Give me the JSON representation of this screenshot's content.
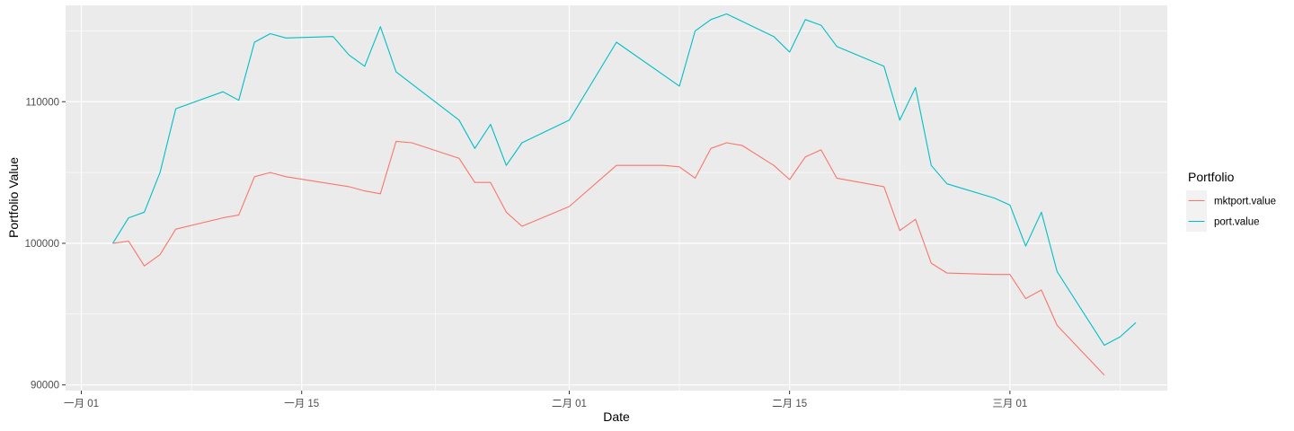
{
  "chart_data": {
    "type": "line",
    "xlabel": "Date",
    "ylabel": "Portfolio Value",
    "xlim": [
      "2021-12-31",
      "2022-03-11"
    ],
    "ylim": [
      89600,
      116800
    ],
    "x_ticks": [
      {
        "date": "2022-01-01",
        "label": "一月 01"
      },
      {
        "date": "2022-01-15",
        "label": "一月 15"
      },
      {
        "date": "2022-02-01",
        "label": "二月 01"
      },
      {
        "date": "2022-02-15",
        "label": "二月 15"
      },
      {
        "date": "2022-03-01",
        "label": "三月 01"
      }
    ],
    "y_ticks": [
      {
        "value": 90000,
        "label": "90000"
      },
      {
        "value": 100000,
        "label": "100000"
      },
      {
        "value": 110000,
        "label": "110000"
      }
    ],
    "grid": true,
    "legend": {
      "title": "Portfolio",
      "position": "right"
    },
    "series": [
      {
        "name": "mktport.value",
        "color": "#F8766D",
        "points": [
          [
            "2022-01-03",
            100000
          ],
          [
            "2022-01-04",
            100150
          ],
          [
            "2022-01-05",
            98400
          ],
          [
            "2022-01-06",
            99200
          ],
          [
            "2022-01-07",
            101000
          ],
          [
            "2022-01-10",
            101800
          ],
          [
            "2022-01-11",
            102000
          ],
          [
            "2022-01-12",
            104700
          ],
          [
            "2022-01-13",
            105000
          ],
          [
            "2022-01-14",
            104700
          ],
          [
            "2022-01-18",
            104000
          ],
          [
            "2022-01-19",
            103700
          ],
          [
            "2022-01-20",
            103500
          ],
          [
            "2022-01-21",
            107200
          ],
          [
            "2022-01-22",
            107100
          ],
          [
            "2022-01-25",
            106000
          ],
          [
            "2022-01-26",
            104300
          ],
          [
            "2022-01-27",
            104300
          ],
          [
            "2022-01-28",
            102200
          ],
          [
            "2022-01-29",
            101200
          ],
          [
            "2022-02-01",
            102600
          ],
          [
            "2022-02-04",
            105500
          ],
          [
            "2022-02-07",
            105500
          ],
          [
            "2022-02-08",
            105400
          ],
          [
            "2022-02-09",
            104600
          ],
          [
            "2022-02-10",
            106700
          ],
          [
            "2022-02-11",
            107100
          ],
          [
            "2022-02-12",
            106900
          ],
          [
            "2022-02-14",
            105500
          ],
          [
            "2022-02-15",
            104500
          ],
          [
            "2022-02-16",
            106100
          ],
          [
            "2022-02-17",
            106600
          ],
          [
            "2022-02-18",
            104600
          ],
          [
            "2022-02-21",
            104000
          ],
          [
            "2022-02-22",
            100900
          ],
          [
            "2022-02-23",
            101700
          ],
          [
            "2022-02-24",
            98600
          ],
          [
            "2022-02-25",
            97900
          ],
          [
            "2022-02-28",
            97800
          ],
          [
            "2022-03-01",
            97800
          ],
          [
            "2022-03-02",
            96100
          ],
          [
            "2022-03-03",
            96700
          ],
          [
            "2022-03-04",
            94200
          ],
          [
            "2022-03-07",
            90700
          ]
        ]
      },
      {
        "name": "port.value",
        "color": "#00BFC4",
        "points": [
          [
            "2022-01-03",
            100000
          ],
          [
            "2022-01-04",
            101800
          ],
          [
            "2022-01-05",
            102200
          ],
          [
            "2022-01-06",
            105000
          ],
          [
            "2022-01-07",
            109500
          ],
          [
            "2022-01-10",
            110700
          ],
          [
            "2022-01-11",
            110100
          ],
          [
            "2022-01-12",
            114200
          ],
          [
            "2022-01-13",
            114800
          ],
          [
            "2022-01-14",
            114500
          ],
          [
            "2022-01-17",
            114600
          ],
          [
            "2022-01-18",
            113300
          ],
          [
            "2022-01-19",
            112500
          ],
          [
            "2022-01-20",
            115300
          ],
          [
            "2022-01-21",
            112100
          ],
          [
            "2022-01-25",
            108700
          ],
          [
            "2022-01-26",
            106700
          ],
          [
            "2022-01-27",
            108400
          ],
          [
            "2022-01-28",
            105500
          ],
          [
            "2022-01-29",
            107100
          ],
          [
            "2022-02-01",
            108700
          ],
          [
            "2022-02-04",
            114200
          ],
          [
            "2022-02-08",
            111100
          ],
          [
            "2022-02-09",
            115000
          ],
          [
            "2022-02-10",
            115800
          ],
          [
            "2022-02-11",
            116200
          ],
          [
            "2022-02-14",
            114600
          ],
          [
            "2022-02-15",
            113500
          ],
          [
            "2022-02-16",
            115800
          ],
          [
            "2022-02-17",
            115400
          ],
          [
            "2022-02-18",
            113900
          ],
          [
            "2022-02-21",
            112500
          ],
          [
            "2022-02-22",
            108700
          ],
          [
            "2022-02-23",
            111000
          ],
          [
            "2022-02-24",
            105500
          ],
          [
            "2022-02-25",
            104200
          ],
          [
            "2022-02-28",
            103200
          ],
          [
            "2022-03-01",
            102700
          ],
          [
            "2022-03-02",
            99800
          ],
          [
            "2022-03-03",
            102200
          ],
          [
            "2022-03-04",
            98000
          ],
          [
            "2022-03-07",
            92800
          ],
          [
            "2022-03-08",
            93400
          ],
          [
            "2022-03-09",
            94400
          ]
        ]
      }
    ]
  }
}
